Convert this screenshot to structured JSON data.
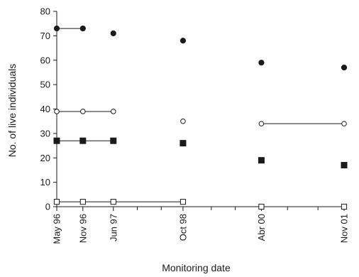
{
  "chart_data": {
    "type": "scatter",
    "title": "",
    "xlabel": "Monitoring date",
    "ylabel": "No. of live individuals",
    "ylim": [
      0,
      80
    ],
    "yticks": [
      0,
      10,
      20,
      30,
      40,
      50,
      60,
      70,
      80
    ],
    "x_axis_scale": "time (months from May 96)",
    "xlim_months": [
      0,
      66
    ],
    "categories": [
      "May 96",
      "Nov 96",
      "Jun 97",
      "Oct 98",
      "Abr 00",
      "Nov 01"
    ],
    "category_months": [
      0,
      6,
      13,
      29,
      47,
      66
    ],
    "minor_tick_months": [
      18.5,
      24,
      35.5,
      41,
      53,
      60
    ],
    "legend": "none",
    "grid": false,
    "series": [
      {
        "marker": "filled-circle",
        "color": "#1a1a1a",
        "values": [
          73,
          73,
          71,
          68,
          59,
          57
        ],
        "connected_segments": [
          [
            0,
            1
          ]
        ]
      },
      {
        "marker": "open-circle",
        "color": "#1a1a1a",
        "values": [
          39,
          39,
          39,
          35,
          34,
          34
        ],
        "connected_segments": [
          [
            0,
            2
          ],
          [
            4,
            5
          ]
        ]
      },
      {
        "marker": "filled-square",
        "color": "#1a1a1a",
        "values": [
          27,
          27,
          27,
          26,
          19,
          17
        ],
        "connected_segments": [
          [
            0,
            2
          ]
        ]
      },
      {
        "marker": "open-square",
        "color": "#1a1a1a",
        "values": [
          2,
          2,
          2,
          2,
          0,
          0
        ],
        "connected_segments": [
          [
            0,
            3
          ]
        ]
      }
    ]
  }
}
